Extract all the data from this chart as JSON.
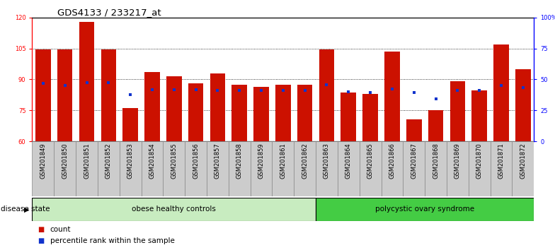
{
  "title": "GDS4133 / 233217_at",
  "samples": [
    "GSM201849",
    "GSM201850",
    "GSM201851",
    "GSM201852",
    "GSM201853",
    "GSM201854",
    "GSM201855",
    "GSM201856",
    "GSM201857",
    "GSM201858",
    "GSM201859",
    "GSM201861",
    "GSM201862",
    "GSM201863",
    "GSM201864",
    "GSM201865",
    "GSM201866",
    "GSM201867",
    "GSM201868",
    "GSM201869",
    "GSM201870",
    "GSM201871",
    "GSM201872"
  ],
  "count_values": [
    104.5,
    104.5,
    118.0,
    104.5,
    76.0,
    93.5,
    91.5,
    88.0,
    93.0,
    87.5,
    86.5,
    87.5,
    87.5,
    104.5,
    83.5,
    83.0,
    103.5,
    70.5,
    75.0,
    89.0,
    84.5,
    107.0,
    95.0
  ],
  "percentile_left_values": [
    88.0,
    87.0,
    88.5,
    88.5,
    82.5,
    85.0,
    85.0,
    85.0,
    84.5,
    84.5,
    84.5,
    84.5,
    84.5,
    87.5,
    84.0,
    83.5,
    85.5,
    83.5,
    80.5,
    84.5,
    84.5,
    87.0,
    86.0
  ],
  "groups": [
    {
      "label": "obese healthy controls",
      "start": 0,
      "end": 12,
      "color": "#c8ecc0"
    },
    {
      "label": "polycystic ovary syndrome",
      "start": 13,
      "end": 22,
      "color": "#44cc44"
    }
  ],
  "ylim_left": [
    60,
    120
  ],
  "ylim_right": [
    0,
    100
  ],
  "y_ticks_left": [
    60,
    75,
    90,
    105,
    120
  ],
  "y_ticks_right": [
    0,
    25,
    50,
    75,
    100
  ],
  "y_tick_labels_right": [
    "0",
    "25",
    "50",
    "75",
    "100%"
  ],
  "bar_color": "#cc1100",
  "dot_color": "#1133cc",
  "bar_width": 0.7,
  "background_color": "#ffffff",
  "legend_count_label": "count",
  "legend_pct_label": "percentile rank within the sample",
  "disease_state_label": "disease state",
  "title_fontsize": 9.5,
  "tick_fontsize": 6.0,
  "label_fontsize": 7.5,
  "group_label_fontsize": 7.5,
  "xtick_bg_color": "#cccccc",
  "xtick_border_color": "#888888"
}
